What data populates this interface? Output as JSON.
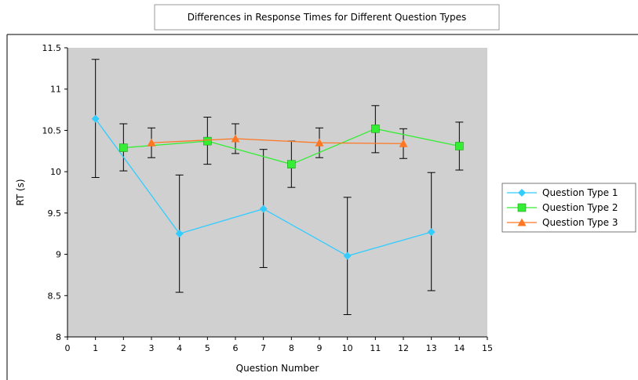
{
  "chart_data": {
    "type": "line",
    "title": "Differences in Response Times for Different Question Types",
    "xlabel": "Question Number",
    "ylabel": "RT (s)",
    "xlim": [
      0,
      15
    ],
    "ylim": [
      8,
      11.5
    ],
    "x_ticks": [
      "0",
      "1",
      "2",
      "3",
      "4",
      "5",
      "6",
      "7",
      "8",
      "9",
      "10",
      "11",
      "12",
      "13",
      "14",
      "15"
    ],
    "y_ticks": [
      "8",
      "8.5",
      "9",
      "9.5",
      "10",
      "10.5",
      "11",
      "11.5"
    ],
    "grid": false,
    "legend_position": "right",
    "plot_background": "#d0d0d0",
    "series": [
      {
        "name": "Question Type 1",
        "color": "#33ccff",
        "marker": "diamond",
        "points": [
          {
            "x": 1,
            "y": 10.64,
            "err_low": 9.93,
            "err_high": 11.36
          },
          {
            "x": 4,
            "y": 9.25,
            "err_low": 8.54,
            "err_high": 9.96
          },
          {
            "x": 7,
            "y": 9.55,
            "err_low": 8.84,
            "err_high": 10.27
          },
          {
            "x": 10,
            "y": 8.98,
            "err_low": 8.27,
            "err_high": 9.69
          },
          {
            "x": 13,
            "y": 9.27,
            "err_low": 8.56,
            "err_high": 9.99
          }
        ]
      },
      {
        "name": "Question Type 2",
        "color": "#33ee33",
        "marker": "square",
        "points": [
          {
            "x": 2,
            "y": 10.29,
            "err_low": 10.01,
            "err_high": 10.58
          },
          {
            "x": 5,
            "y": 10.37,
            "err_low": 10.09,
            "err_high": 10.66
          },
          {
            "x": 8,
            "y": 10.09,
            "err_low": 9.81,
            "err_high": 10.37
          },
          {
            "x": 11,
            "y": 10.52,
            "err_low": 10.23,
            "err_high": 10.8
          },
          {
            "x": 14,
            "y": 10.31,
            "err_low": 10.02,
            "err_high": 10.6
          }
        ]
      },
      {
        "name": "Question Type 3",
        "color": "#ff7722",
        "marker": "triangle",
        "points": [
          {
            "x": 3,
            "y": 10.35,
            "err_low": 10.17,
            "err_high": 10.53
          },
          {
            "x": 6,
            "y": 10.4,
            "err_low": 10.22,
            "err_high": 10.58
          },
          {
            "x": 9,
            "y": 10.35,
            "err_low": 10.17,
            "err_high": 10.53
          },
          {
            "x": 12,
            "y": 10.34,
            "err_low": 10.16,
            "err_high": 10.52
          }
        ]
      }
    ]
  }
}
